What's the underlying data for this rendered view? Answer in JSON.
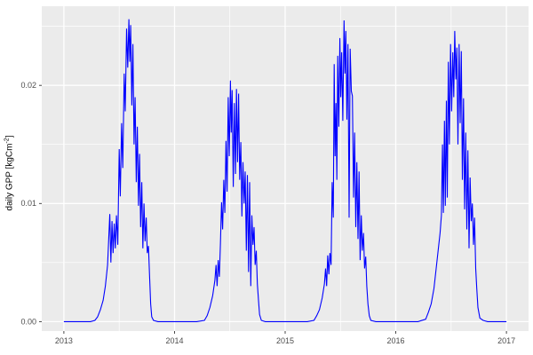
{
  "figure": {
    "y_axis_title": {
      "prefix": "daily GPP [kgCm",
      "sup": "-2",
      "suffix": "]"
    }
  },
  "chart_data": {
    "type": "line",
    "title": "",
    "xlabel": "",
    "ylabel": "daily GPP [kgCm^-2]",
    "legend": "none",
    "grid": true,
    "xlim": [
      2012.8,
      2017.2
    ],
    "ylim": [
      -0.0008,
      0.0267
    ],
    "x_ticks": [
      {
        "v": 2013,
        "label": "2013"
      },
      {
        "v": 2014,
        "label": "2014"
      },
      {
        "v": 2015,
        "label": "2015"
      },
      {
        "v": 2016,
        "label": "2016"
      },
      {
        "v": 2017,
        "label": "2017"
      }
    ],
    "y_ticks": [
      {
        "v": 0.0,
        "label": "0.00"
      },
      {
        "v": 0.01,
        "label": "0.01"
      },
      {
        "v": 0.02,
        "label": "0.02"
      }
    ],
    "x_minor_ticks": [
      2013.5,
      2014.5,
      2015.5,
      2016.5
    ],
    "y_minor_ticks": [
      0.005,
      0.015,
      0.025
    ],
    "colors": {
      "line": "#0000FF",
      "panel_bg": "#EBEBEB",
      "grid": "#FFFFFF",
      "tick_label": "#4D4D4D",
      "tick_mark": "#333333",
      "outer_bg": "#FFFFFF"
    },
    "series": [
      {
        "name": "daily GPP",
        "points": [
          [
            2013.0,
            0
          ],
          [
            2013.08,
            0
          ],
          [
            2013.16,
            0
          ],
          [
            2013.24,
            0
          ],
          [
            2013.28,
            0.0001
          ],
          [
            2013.305,
            0.0004
          ],
          [
            2013.33,
            0.001
          ],
          [
            2013.355,
            0.0018
          ],
          [
            2013.375,
            0.003
          ],
          [
            2013.395,
            0.0048
          ],
          [
            2013.415,
            0.0091
          ],
          [
            2013.425,
            0.005
          ],
          [
            2013.435,
            0.0085
          ],
          [
            2013.445,
            0.0058
          ],
          [
            2013.455,
            0.0083
          ],
          [
            2013.465,
            0.0062
          ],
          [
            2013.475,
            0.009
          ],
          [
            2013.487,
            0.0065
          ],
          [
            2013.5,
            0.0146
          ],
          [
            2013.51,
            0.0106
          ],
          [
            2013.522,
            0.0168
          ],
          [
            2013.532,
            0.013
          ],
          [
            2013.545,
            0.021
          ],
          [
            2013.555,
            0.0178
          ],
          [
            2013.567,
            0.0248
          ],
          [
            2013.577,
            0.0215
          ],
          [
            2013.588,
            0.0256
          ],
          [
            2013.596,
            0.022
          ],
          [
            2013.604,
            0.0251
          ],
          [
            2013.614,
            0.0183
          ],
          [
            2013.624,
            0.0235
          ],
          [
            2013.634,
            0.015
          ],
          [
            2013.644,
            0.019
          ],
          [
            2013.654,
            0.0118
          ],
          [
            2013.664,
            0.0165
          ],
          [
            2013.674,
            0.0098
          ],
          [
            2013.684,
            0.0142
          ],
          [
            2013.694,
            0.008
          ],
          [
            2013.704,
            0.0118
          ],
          [
            2013.714,
            0.0062
          ],
          [
            2013.724,
            0.01
          ],
          [
            2013.734,
            0.0068
          ],
          [
            2013.744,
            0.0088
          ],
          [
            2013.754,
            0.0058
          ],
          [
            2013.764,
            0.0064
          ],
          [
            2013.774,
            0.004
          ],
          [
            2013.784,
            0.0015
          ],
          [
            2013.794,
            0.0004
          ],
          [
            2013.81,
            0.0001
          ],
          [
            2013.85,
            0
          ],
          [
            2013.9,
            0
          ],
          [
            2013.95,
            0
          ],
          [
            2014.0,
            0
          ],
          [
            2014.1,
            0
          ],
          [
            2014.2,
            0
          ],
          [
            2014.27,
            0.0001
          ],
          [
            2014.295,
            0.0005
          ],
          [
            2014.32,
            0.0012
          ],
          [
            2014.345,
            0.0022
          ],
          [
            2014.365,
            0.0035
          ],
          [
            2014.375,
            0.0048
          ],
          [
            2014.385,
            0.003
          ],
          [
            2014.395,
            0.0052
          ],
          [
            2014.405,
            0.0038
          ],
          [
            2014.415,
            0.0065
          ],
          [
            2014.425,
            0.0101
          ],
          [
            2014.435,
            0.0078
          ],
          [
            2014.445,
            0.012
          ],
          [
            2014.455,
            0.0092
          ],
          [
            2014.465,
            0.0153
          ],
          [
            2014.475,
            0.011
          ],
          [
            2014.485,
            0.019
          ],
          [
            2014.495,
            0.014
          ],
          [
            2014.505,
            0.0204
          ],
          [
            2014.513,
            0.016
          ],
          [
            2014.521,
            0.0196
          ],
          [
            2014.531,
            0.0114
          ],
          [
            2014.541,
            0.0185
          ],
          [
            2014.551,
            0.0125
          ],
          [
            2014.56,
            0.0197
          ],
          [
            2014.57,
            0.0135
          ],
          [
            2014.579,
            0.0193
          ],
          [
            2014.589,
            0.012
          ],
          [
            2014.599,
            0.0152
          ],
          [
            2014.609,
            0.0089
          ],
          [
            2014.619,
            0.0135
          ],
          [
            2014.629,
            0.01
          ],
          [
            2014.639,
            0.0127
          ],
          [
            2014.649,
            0.006
          ],
          [
            2014.659,
            0.0124
          ],
          [
            2014.669,
            0.0042
          ],
          [
            2014.679,
            0.0118
          ],
          [
            2014.689,
            0.003
          ],
          [
            2014.699,
            0.009
          ],
          [
            2014.709,
            0.0065
          ],
          [
            2014.719,
            0.008
          ],
          [
            2014.729,
            0.0048
          ],
          [
            2014.739,
            0.006
          ],
          [
            2014.749,
            0.0032
          ],
          [
            2014.759,
            0.0018
          ],
          [
            2014.769,
            0.0006
          ],
          [
            2014.785,
            0.0001
          ],
          [
            2014.82,
            0
          ],
          [
            2014.9,
            0
          ],
          [
            2014.95,
            0
          ],
          [
            2015.0,
            0
          ],
          [
            2015.1,
            0
          ],
          [
            2015.2,
            0
          ],
          [
            2015.26,
            0.0001
          ],
          [
            2015.285,
            0.0005
          ],
          [
            2015.31,
            0.001
          ],
          [
            2015.335,
            0.002
          ],
          [
            2015.355,
            0.0032
          ],
          [
            2015.365,
            0.0045
          ],
          [
            2015.375,
            0.003
          ],
          [
            2015.385,
            0.0056
          ],
          [
            2015.395,
            0.004
          ],
          [
            2015.405,
            0.0058
          ],
          [
            2015.415,
            0.0048
          ],
          [
            2015.425,
            0.0118
          ],
          [
            2015.435,
            0.0088
          ],
          [
            2015.443,
            0.0218
          ],
          [
            2015.451,
            0.014
          ],
          [
            2015.459,
            0.0185
          ],
          [
            2015.467,
            0.012
          ],
          [
            2015.475,
            0.0225
          ],
          [
            2015.485,
            0.0165
          ],
          [
            2015.495,
            0.024
          ],
          [
            2015.503,
            0.019
          ],
          [
            2015.511,
            0.0228
          ],
          [
            2015.521,
            0.017
          ],
          [
            2015.532,
            0.0255
          ],
          [
            2015.54,
            0.021
          ],
          [
            2015.548,
            0.0246
          ],
          [
            2015.558,
            0.0171
          ],
          [
            2015.568,
            0.0235
          ],
          [
            2015.578,
            0.0088
          ],
          [
            2015.588,
            0.0231
          ],
          [
            2015.598,
            0.0195
          ],
          [
            2015.608,
            0.0191
          ],
          [
            2015.618,
            0.0105
          ],
          [
            2015.628,
            0.016
          ],
          [
            2015.638,
            0.008
          ],
          [
            2015.648,
            0.0135
          ],
          [
            2015.658,
            0.007
          ],
          [
            2015.668,
            0.0127
          ],
          [
            2015.678,
            0.0052
          ],
          [
            2015.688,
            0.009
          ],
          [
            2015.698,
            0.006
          ],
          [
            2015.708,
            0.0075
          ],
          [
            2015.718,
            0.0045
          ],
          [
            2015.728,
            0.0055
          ],
          [
            2015.738,
            0.003
          ],
          [
            2015.748,
            0.0015
          ],
          [
            2015.76,
            0.0005
          ],
          [
            2015.775,
            0.0001
          ],
          [
            2015.82,
            0
          ],
          [
            2015.9,
            0
          ],
          [
            2015.95,
            0
          ],
          [
            2016.0,
            0
          ],
          [
            2016.1,
            0
          ],
          [
            2016.2,
            0
          ],
          [
            2016.27,
            0.0002
          ],
          [
            2016.295,
            0.0008
          ],
          [
            2016.32,
            0.0015
          ],
          [
            2016.345,
            0.0028
          ],
          [
            2016.365,
            0.0045
          ],
          [
            2016.385,
            0.0062
          ],
          [
            2016.4,
            0.0075
          ],
          [
            2016.412,
            0.009
          ],
          [
            2016.422,
            0.015
          ],
          [
            2016.43,
            0.0092
          ],
          [
            2016.44,
            0.017
          ],
          [
            2016.448,
            0.0098
          ],
          [
            2016.457,
            0.0187
          ],
          [
            2016.465,
            0.0105
          ],
          [
            2016.475,
            0.022
          ],
          [
            2016.485,
            0.015
          ],
          [
            2016.495,
            0.0235
          ],
          [
            2016.505,
            0.0178
          ],
          [
            2016.515,
            0.0228
          ],
          [
            2016.524,
            0.019
          ],
          [
            2016.533,
            0.0246
          ],
          [
            2016.543,
            0.0205
          ],
          [
            2016.552,
            0.0232
          ],
          [
            2016.562,
            0.015
          ],
          [
            2016.572,
            0.0235
          ],
          [
            2016.582,
            0.0168
          ],
          [
            2016.592,
            0.0229
          ],
          [
            2016.602,
            0.012
          ],
          [
            2016.612,
            0.0189
          ],
          [
            2016.622,
            0.0095
          ],
          [
            2016.632,
            0.016
          ],
          [
            2016.642,
            0.0078
          ],
          [
            2016.652,
            0.0145
          ],
          [
            2016.662,
            0.0062
          ],
          [
            2016.672,
            0.0122
          ],
          [
            2016.682,
            0.0085
          ],
          [
            2016.692,
            0.01
          ],
          [
            2016.702,
            0.0065
          ],
          [
            2016.712,
            0.0088
          ],
          [
            2016.722,
            0.0045
          ],
          [
            2016.732,
            0.0028
          ],
          [
            2016.742,
            0.0012
          ],
          [
            2016.76,
            0.0003
          ],
          [
            2016.79,
            0.0001
          ],
          [
            2016.83,
            0
          ],
          [
            2016.9,
            0
          ],
          [
            2016.95,
            0
          ],
          [
            2017.0,
            0
          ]
        ]
      }
    ]
  }
}
